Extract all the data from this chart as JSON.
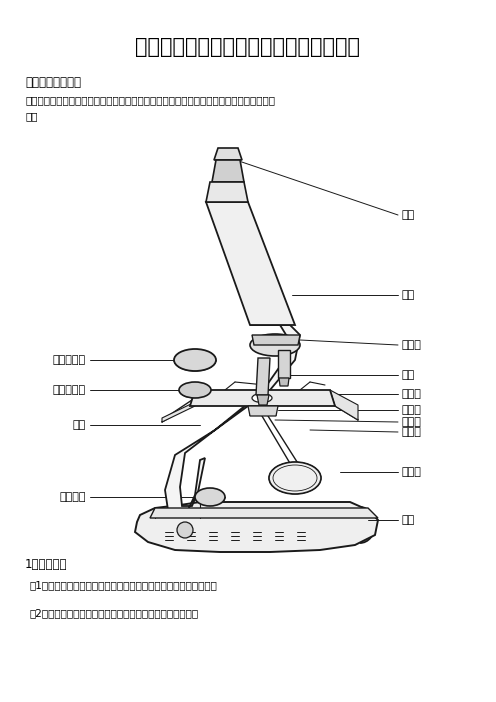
{
  "title": "高中生物实验常用显微镜介绍及使用方法",
  "section1": "一．显微镜的构造",
  "intro_line1": "一般光学显微镜的构造包括两大部分，即保证成象的光学系统和用以装置光学系统的机械部",
  "intro_line2": "分。",
  "section2": "1、机械部分",
  "item1": "（1）镜座：是显微镜的底座，支持整个镜体，使显微镜放置稳固。",
  "item2": "（2）镜柱：镜座上面直立的短柱，支持镜体上部的各部分。",
  "bg_color": "#ffffff",
  "text_color": "#000000",
  "line_color": "#1a1a1a",
  "title_fontsize": 15,
  "body_fontsize": 8.5,
  "label_fontsize": 8.0,
  "small_fontsize": 7.5
}
